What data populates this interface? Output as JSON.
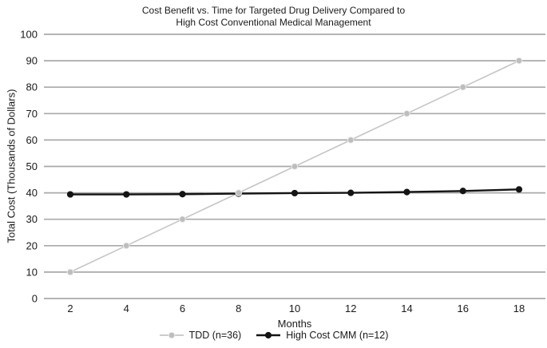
{
  "chart_data": {
    "type": "line",
    "title": "Cost Benefit vs. Time for Targeted Drug Delivery Compared to High Cost Conventional Medical Management",
    "title_lines": [
      "Cost Benefit vs. Time for Targeted Drug Delivery Compared to",
      "High Cost Conventional Medical Management"
    ],
    "xlabel": "Months",
    "ylabel": "Total Cost (Thousands of Dollars)",
    "x": [
      2,
      4,
      6,
      8,
      10,
      12,
      14,
      16,
      18
    ],
    "ylim": [
      0,
      100
    ],
    "y_ticks": [
      0,
      10,
      20,
      30,
      40,
      50,
      60,
      70,
      80,
      90,
      100
    ],
    "grid": "horizontal",
    "legend_position": "bottom",
    "text_color": "#1a1a1a",
    "grid_color": "#a9a9a9",
    "series": [
      {
        "name": "TDD (n=36)",
        "color": "#c5c5c5",
        "marker_fill": "#bdbdbd",
        "marker_stroke": "#ececec",
        "line_width": 1.6,
        "marker_radius": 3.8,
        "values": [
          10,
          20,
          30,
          40,
          50,
          60,
          70,
          80,
          90
        ]
      },
      {
        "name": "High Cost CMM (n=12)",
        "color": "#141414",
        "marker_fill": "#141414",
        "marker_stroke": "#141414",
        "line_width": 2.4,
        "marker_radius": 3.6,
        "values": [
          39.4,
          39.4,
          39.5,
          39.7,
          39.9,
          40,
          40.3,
          40.7,
          41.3
        ]
      }
    ]
  }
}
